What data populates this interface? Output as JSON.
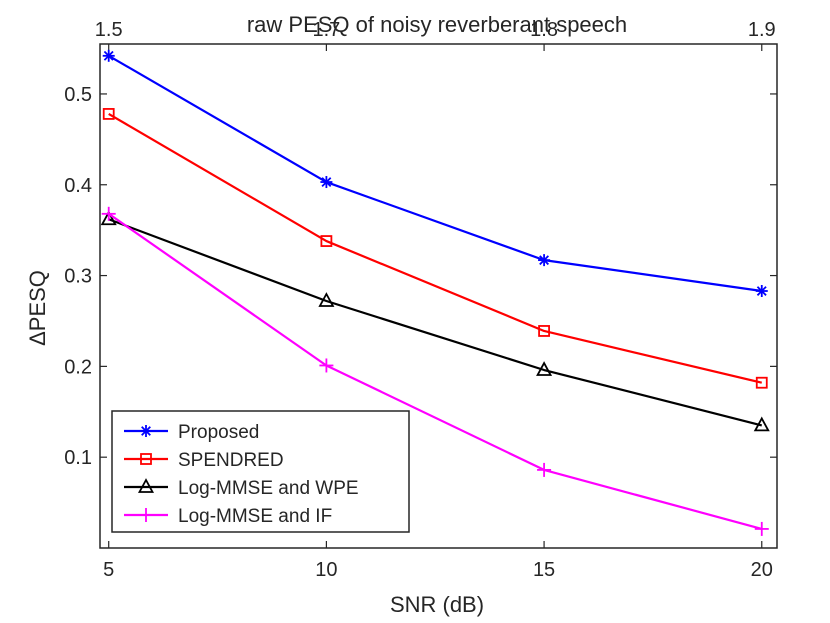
{
  "chart_data": {
    "type": "line",
    "title": "",
    "xlabel": "SNR (dB)",
    "ylabel": "ΔPESQ",
    "top_axis_label": "raw PESQ of noisy reverberant speech",
    "x": [
      5,
      10,
      15,
      20
    ],
    "xlim": [
      4.8,
      20.35
    ],
    "ylim": [
      0.0,
      0.555
    ],
    "x_ticks": [
      5,
      10,
      15,
      20
    ],
    "x_tick_labels": [
      "5",
      "10",
      "15",
      "20"
    ],
    "y_ticks": [
      0.1,
      0.2,
      0.3,
      0.4,
      0.5
    ],
    "y_tick_labels": [
      "0.1",
      "0.2",
      "0.3",
      "0.4",
      "0.5"
    ],
    "top_ticks": [
      5,
      10,
      15,
      20
    ],
    "top_tick_labels": [
      "1.5",
      "1.7",
      "1.8",
      "1.9"
    ],
    "legend_position": "bottom-left",
    "series": [
      {
        "name": "Proposed",
        "color": "#0000ff",
        "marker": "asterisk",
        "values": [
          0.542,
          0.403,
          0.317,
          0.283
        ]
      },
      {
        "name": "SPENDRED",
        "color": "#ff0000",
        "marker": "square",
        "values": [
          0.478,
          0.338,
          0.239,
          0.182
        ]
      },
      {
        "name": "Log-MMSE and WPE",
        "color": "#000000",
        "marker": "triangle",
        "values": [
          0.362,
          0.272,
          0.196,
          0.135
        ]
      },
      {
        "name": "Log-MMSE and IF",
        "color": "#ff00ff",
        "marker": "plus",
        "values": [
          0.368,
          0.201,
          0.086,
          0.021
        ]
      }
    ]
  }
}
